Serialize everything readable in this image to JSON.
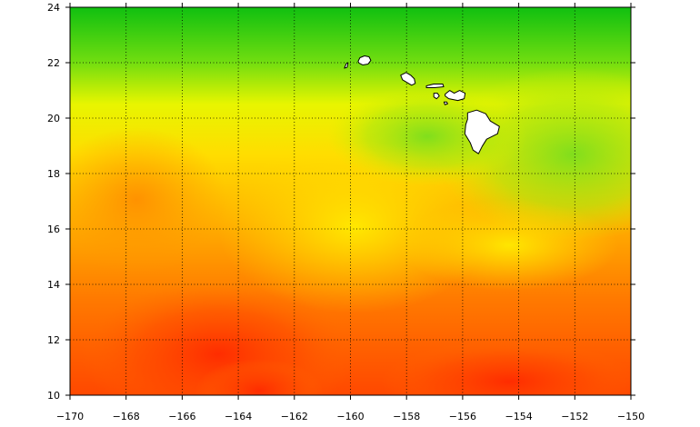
{
  "map": {
    "type": "heatmap",
    "lon_range": [
      -170,
      -150
    ],
    "lat_range": [
      10,
      24
    ],
    "x_ticks": [
      {
        "value": -170,
        "label": "−170"
      },
      {
        "value": -168,
        "label": "−168"
      },
      {
        "value": -166,
        "label": "−166"
      },
      {
        "value": -164,
        "label": "−164"
      },
      {
        "value": -162,
        "label": "−162"
      },
      {
        "value": -160,
        "label": "−160"
      },
      {
        "value": -158,
        "label": "−158"
      },
      {
        "value": -156,
        "label": "−156"
      },
      {
        "value": -154,
        "label": "−154"
      },
      {
        "value": -152,
        "label": "−152"
      },
      {
        "value": -150,
        "label": "−150"
      }
    ],
    "y_ticks": [
      {
        "value": 10,
        "label": "10"
      },
      {
        "value": 12,
        "label": "12"
      },
      {
        "value": 14,
        "label": "14"
      },
      {
        "value": 16,
        "label": "16"
      },
      {
        "value": 18,
        "label": "18"
      },
      {
        "value": 20,
        "label": "20"
      },
      {
        "value": 22,
        "label": "22"
      },
      {
        "value": 24,
        "label": "24"
      }
    ],
    "grid": true,
    "grid_style": "dotted",
    "colors": {
      "high": "#ff3a00",
      "mid_high": "#ff9a00",
      "mid": "#ffff00",
      "low": "#00cc00",
      "land": "#ffffff",
      "coast": "#000000"
    },
    "islands": [
      {
        "name": "niihau-island",
        "lon": -160.15,
        "lat": 21.9
      },
      {
        "name": "kauai-island",
        "lon": -159.5,
        "lat": 22.05
      },
      {
        "name": "oahu-island",
        "lon": -157.95,
        "lat": 21.45
      },
      {
        "name": "molokai-island",
        "lon": -157.0,
        "lat": 21.13
      },
      {
        "name": "lanai-island",
        "lon": -156.93,
        "lat": 20.83
      },
      {
        "name": "maui-island",
        "lon": -156.3,
        "lat": 20.8
      },
      {
        "name": "kahoolawe-island",
        "lon": -156.6,
        "lat": 20.55
      },
      {
        "name": "hawaii-island",
        "lon": -155.5,
        "lat": 19.6
      }
    ]
  }
}
